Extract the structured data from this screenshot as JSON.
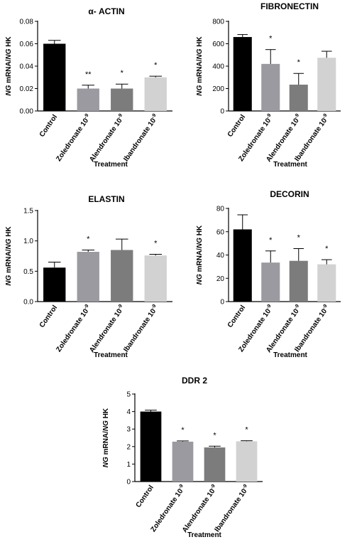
{
  "chart_data": [
    {
      "type": "bar",
      "title": "α- ACTIN",
      "ylabel": {
        "italic_a": "NG",
        "mid": " mRNA/",
        "italic_b": "NG",
        "end": " HK"
      },
      "xlabel": "Treatment",
      "categories": [
        "Control",
        "Zoledronate 10",
        "Alendronate 10",
        "Ibandronate 10"
      ],
      "exponent": "-9",
      "values": [
        0.06,
        0.02,
        0.02,
        0.03
      ],
      "errors": [
        0.003,
        0.003,
        0.004,
        0.001
      ],
      "significance": [
        "",
        "**",
        "*",
        "*"
      ],
      "ylim": [
        0,
        0.08
      ],
      "yticks": [
        "0.00",
        "0.02",
        "0.04",
        "0.06",
        "0.08"
      ],
      "ytick_values": [
        0,
        0.02,
        0.04,
        0.06,
        0.08
      ],
      "bar_colors": [
        "#000000",
        "#9a9aa0",
        "#7c7c7c",
        "#d2d2d2"
      ]
    },
    {
      "type": "bar",
      "title": "FIBRONECTIN",
      "ylabel": {
        "italic_a": "NG",
        "mid": " mRNA/",
        "italic_b": "NG",
        "end": " HK"
      },
      "xlabel": "Treatment",
      "categories": [
        "Control",
        "Zoledronate 10",
        "Alendronate 10",
        "Ibandronate 10"
      ],
      "exponent": "-9",
      "values": [
        660,
        420,
        235,
        475
      ],
      "errors": [
        22,
        128,
        100,
        58
      ],
      "significance": [
        "",
        "*",
        "*",
        ""
      ],
      "ylim": [
        0,
        800
      ],
      "yticks": [
        "0",
        "200",
        "400",
        "600",
        "800"
      ],
      "ytick_values": [
        0,
        200,
        400,
        600,
        800
      ],
      "bar_colors": [
        "#000000",
        "#9a9aa0",
        "#7c7c7c",
        "#d2d2d2"
      ]
    },
    {
      "type": "bar",
      "title": "ELASTIN",
      "ylabel": {
        "italic_a": "NG",
        "mid": " mRNA/",
        "italic_b": "NG",
        "end": " HK"
      },
      "xlabel": "Treatment",
      "categories": [
        "Control",
        "Zoledronate 10",
        "Alendronate 10",
        "Ibandronate 10"
      ],
      "exponent": "-9",
      "values": [
        0.56,
        0.82,
        0.85,
        0.76
      ],
      "errors": [
        0.09,
        0.03,
        0.18,
        0.02
      ],
      "significance": [
        "",
        "*",
        "",
        "*"
      ],
      "ylim": [
        0,
        1.5
      ],
      "yticks": [
        "0.0",
        "0.5",
        "1.0",
        "1.5"
      ],
      "ytick_values": [
        0,
        0.5,
        1.0,
        1.5
      ],
      "bar_colors": [
        "#000000",
        "#9a9aa0",
        "#7c7c7c",
        "#d2d2d2"
      ]
    },
    {
      "type": "bar",
      "title": "DECORIN",
      "ylabel": {
        "italic_a": "NG",
        "mid": " mRNA/",
        "italic_b": "NG",
        "end": " HK"
      },
      "xlabel": "Treatment",
      "categories": [
        "Control",
        "Zoledronate 10",
        "Alendronate 10",
        "Ibandronate 10"
      ],
      "exponent": "-9",
      "values": [
        62,
        33.5,
        35,
        32
      ],
      "errors": [
        12.5,
        10,
        10.5,
        4
      ],
      "significance": [
        "",
        "*",
        "*",
        "*"
      ],
      "ylim": [
        0,
        80
      ],
      "yticks": [
        "0",
        "20",
        "40",
        "60",
        "80"
      ],
      "ytick_values": [
        0,
        20,
        40,
        60,
        80
      ],
      "bar_colors": [
        "#000000",
        "#9a9aa0",
        "#7c7c7c",
        "#d2d2d2"
      ]
    },
    {
      "type": "bar",
      "title": "DDR 2",
      "ylabel": {
        "italic_a": "NG",
        "mid": " mRNA/",
        "italic_b": "NG",
        "end": " HK"
      },
      "xlabel": "Treatment",
      "categories": [
        "Control",
        "Zoledronate 10",
        "Alendronate 10",
        "Ibandronate 10"
      ],
      "exponent": "-9",
      "values": [
        4.0,
        2.28,
        1.95,
        2.3
      ],
      "errors": [
        0.08,
        0.04,
        0.07,
        0.03
      ],
      "significance": [
        "",
        "*",
        "*",
        "*"
      ],
      "ylim": [
        0,
        5
      ],
      "yticks": [
        "0",
        "1",
        "2",
        "3",
        "4",
        "5"
      ],
      "ytick_values": [
        0,
        1,
        2,
        3,
        4,
        5
      ],
      "bar_colors": [
        "#000000",
        "#9a9aa0",
        "#7c7c7c",
        "#d2d2d2"
      ]
    }
  ]
}
